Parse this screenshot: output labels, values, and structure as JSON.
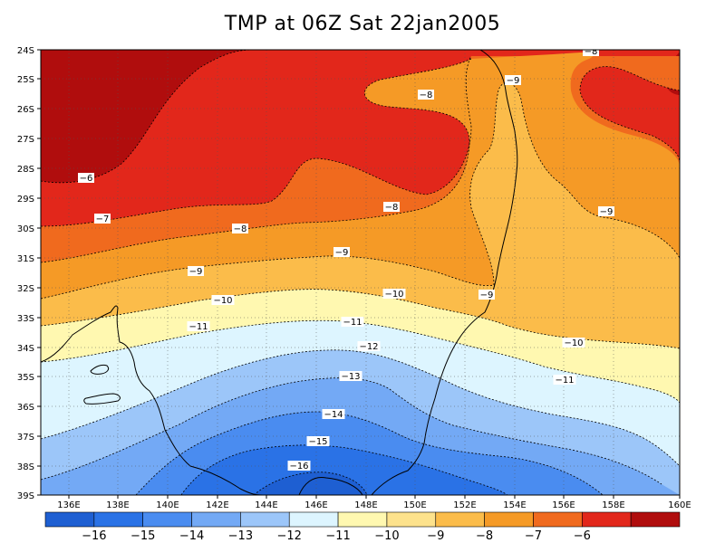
{
  "title": "TMP at 06Z Sat 22jan2005",
  "map": {
    "lat_labels": [
      "24S",
      "25S",
      "26S",
      "27S",
      "28S",
      "29S",
      "30S",
      "31S",
      "32S",
      "33S",
      "34S",
      "35S",
      "36S",
      "37S",
      "38S",
      "39S"
    ],
    "lon_labels": [
      "136E",
      "138E",
      "140E",
      "142E",
      "144E",
      "146E",
      "148E",
      "150E",
      "152E",
      "154E",
      "156E",
      "158E",
      "160E"
    ],
    "contour_labels": [
      {
        "text": "-6",
        "level": -6
      },
      {
        "text": "-7",
        "level": -7
      },
      {
        "text": "-8",
        "level": -8
      },
      {
        "text": "-8",
        "level": -8
      },
      {
        "text": "-8",
        "level": -8
      },
      {
        "text": "-8",
        "level": -8
      },
      {
        "text": "-9",
        "level": -9
      },
      {
        "text": "-9",
        "level": -9
      },
      {
        "text": "-9",
        "level": -9
      },
      {
        "text": "-9",
        "level": -9
      },
      {
        "text": "-9",
        "level": -9
      },
      {
        "text": "-10",
        "level": -10
      },
      {
        "text": "-10",
        "level": -10
      },
      {
        "text": "-10",
        "level": -10
      },
      {
        "text": "-11",
        "level": -11
      },
      {
        "text": "-11",
        "level": -11
      },
      {
        "text": "-11",
        "level": -11
      },
      {
        "text": "-12",
        "level": -12
      },
      {
        "text": "-13",
        "level": -13
      },
      {
        "text": "-14",
        "level": -14
      },
      {
        "text": "-15",
        "level": -15
      },
      {
        "text": "-16",
        "level": -16
      }
    ]
  },
  "colorbar": {
    "colors": [
      "#1e5fd2",
      "#2a72e6",
      "#4a8cf0",
      "#73a9f5",
      "#9cc6f9",
      "#ddf5ff",
      "#fff8b0",
      "#fde28c",
      "#fbbc4a",
      "#f59a26",
      "#f06a1e",
      "#e2271b",
      "#b00d0d"
    ],
    "labels": [
      "-16",
      "-15",
      "-14",
      "-13",
      "-12",
      "-11",
      "-10",
      "-9",
      "-8",
      "-7",
      "-6"
    ]
  }
}
